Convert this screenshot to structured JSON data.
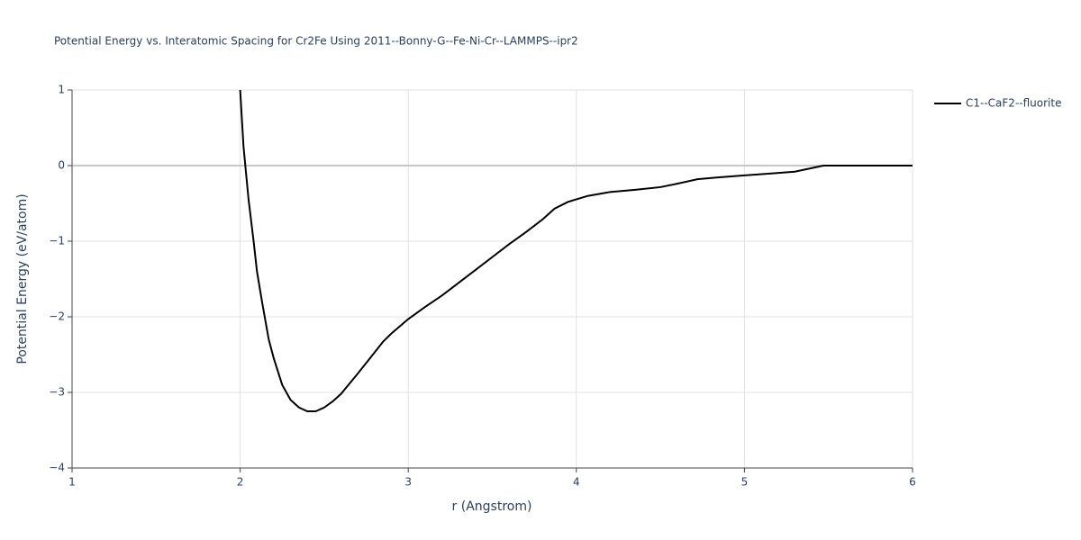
{
  "chart_data": {
    "type": "line",
    "title": "Potential Energy vs. Interatomic Spacing for Cr2Fe Using 2011--Bonny-G--Fe-Ni-Cr--LAMMPS--ipr2",
    "x_label": "r (Angstrom)",
    "y_label": "Potential Energy (eV/atom)",
    "xlim": [
      1,
      6
    ],
    "xticks": [
      1,
      2,
      3,
      4,
      5,
      6
    ],
    "ylim": [
      -4,
      1
    ],
    "yticks": [
      {
        "value": -4,
        "label": "−4"
      },
      {
        "value": -3,
        "label": "−3"
      },
      {
        "value": -2,
        "label": "−2"
      },
      {
        "value": -1,
        "label": "−1"
      },
      0,
      1
    ],
    "grid": true,
    "legend": "top-right",
    "series": [
      {
        "name": "C1--CaF2--fluorite",
        "color": "#000000",
        "x": [
          2.0,
          2.02,
          2.05,
          2.08,
          2.1,
          2.13,
          2.17,
          2.2,
          2.25,
          2.3,
          2.35,
          2.4,
          2.45,
          2.5,
          2.55,
          2.6,
          2.7,
          2.8,
          2.85,
          2.9,
          3.0,
          3.1,
          3.2,
          3.3,
          3.4,
          3.5,
          3.6,
          3.7,
          3.8,
          3.87,
          3.95,
          4.07,
          4.2,
          4.35,
          4.5,
          4.6,
          4.72,
          4.85,
          5.0,
          5.15,
          5.3,
          5.47,
          5.6,
          6.0
        ],
        "values": [
          1.0,
          0.25,
          -0.45,
          -1.0,
          -1.4,
          -1.8,
          -2.3,
          -2.55,
          -2.9,
          -3.1,
          -3.2,
          -3.25,
          -3.25,
          -3.2,
          -3.12,
          -3.02,
          -2.75,
          -2.47,
          -2.33,
          -2.22,
          -2.03,
          -1.87,
          -1.72,
          -1.55,
          -1.38,
          -1.21,
          -1.04,
          -0.88,
          -0.71,
          -0.57,
          -0.48,
          -0.4,
          -0.35,
          -0.32,
          -0.285,
          -0.24,
          -0.18,
          -0.155,
          -0.13,
          -0.105,
          -0.08,
          0.0,
          0.0,
          0.0
        ]
      }
    ]
  }
}
